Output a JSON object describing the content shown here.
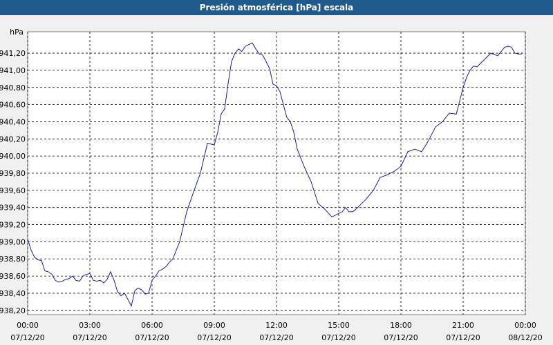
{
  "window": {
    "title": "Presión atmosférica [hPa] escala"
  },
  "colors": {
    "title_bar": "#1f5a8c",
    "line": "#1a1aa8",
    "background": "#f0f0f0",
    "plot_bg": "#ffffff",
    "grid": "#000000"
  },
  "chart_data": {
    "type": "line",
    "title": "Presión atmosférica [hPa] escala",
    "ylabel": "hPa",
    "xlabel": "",
    "grid": true,
    "grid_style": "dashed",
    "ylim": [
      938.15,
      941.45
    ],
    "xlim": [
      0,
      24
    ],
    "x_unit": "hours from 07/12/20 00:00",
    "yticks": [
      {
        "value": 938.2,
        "label": "938,20"
      },
      {
        "value": 938.4,
        "label": "938,40"
      },
      {
        "value": 938.6,
        "label": "938,60"
      },
      {
        "value": 938.8,
        "label": "938,80"
      },
      {
        "value": 939.0,
        "label": "939,00"
      },
      {
        "value": 939.2,
        "label": "939,20"
      },
      {
        "value": 939.4,
        "label": "939,40"
      },
      {
        "value": 939.6,
        "label": "939,60"
      },
      {
        "value": 939.8,
        "label": "939,80"
      },
      {
        "value": 940.0,
        "label": "940,00"
      },
      {
        "value": 940.2,
        "label": "940,20"
      },
      {
        "value": 940.4,
        "label": "940,40"
      },
      {
        "value": 940.6,
        "label": "940,60"
      },
      {
        "value": 940.8,
        "label": "940,80"
      },
      {
        "value": 941.0,
        "label": "941,00"
      },
      {
        "value": 941.2,
        "label": "941,20"
      }
    ],
    "xticks": [
      {
        "value": 0,
        "time": "00:00",
        "date": "07/12/20"
      },
      {
        "value": 3,
        "time": "03:00",
        "date": "07/12/20"
      },
      {
        "value": 6,
        "time": "06:00",
        "date": "07/12/20"
      },
      {
        "value": 9,
        "time": "09:00",
        "date": "07/12/20"
      },
      {
        "value": 12,
        "time": "12:00",
        "date": "07/12/20"
      },
      {
        "value": 15,
        "time": "15:00",
        "date": "07/12/20"
      },
      {
        "value": 18,
        "time": "18:00",
        "date": "07/12/20"
      },
      {
        "value": 21,
        "time": "21:00",
        "date": "07/12/20"
      },
      {
        "value": 24,
        "time": "00:00",
        "date": "08/12/20"
      }
    ],
    "series": [
      {
        "x": [
          0,
          0.17,
          0.33,
          0.5,
          0.67,
          0.83,
          1.0,
          1.17,
          1.33,
          1.5,
          1.67,
          1.83,
          2.0,
          2.17,
          2.33,
          2.5,
          2.67,
          2.83,
          3.0,
          3.17,
          3.33,
          3.5,
          3.67,
          3.83,
          4.0,
          4.17,
          4.33,
          4.5,
          4.67,
          4.83,
          5.0,
          5.17,
          5.33,
          5.5,
          5.67,
          5.83,
          6.0,
          6.17,
          6.33,
          6.5,
          6.67,
          6.83,
          7.0,
          7.33,
          7.67,
          8.0,
          8.33,
          8.67,
          9.0,
          9.17,
          9.33,
          9.5,
          9.67,
          9.83,
          10.0,
          10.17,
          10.33,
          10.5,
          10.67,
          10.83,
          11.0,
          11.17,
          11.33,
          11.5,
          11.67,
          11.83,
          12.0,
          12.17,
          12.33,
          12.5,
          12.67,
          12.83,
          13.0,
          13.33,
          13.67,
          14.0,
          14.33,
          14.67,
          15.0,
          15.17,
          15.33,
          15.5,
          15.67,
          15.83,
          16.0,
          16.33,
          16.67,
          17.0,
          17.33,
          17.67,
          18.0,
          18.33,
          18.67,
          19.0,
          19.33,
          19.67,
          20.0,
          20.33,
          20.67,
          21.0,
          21.17,
          21.33,
          21.5,
          21.67,
          21.83,
          22.0,
          22.33,
          22.67,
          23.0,
          23.17,
          23.33,
          23.5,
          23.67,
          23.83
        ],
        "values": [
          939.03,
          938.9,
          938.82,
          938.79,
          938.78,
          938.66,
          938.65,
          938.62,
          938.55,
          938.53,
          938.54,
          938.56,
          938.57,
          938.6,
          938.55,
          938.54,
          938.6,
          938.62,
          938.63,
          938.55,
          938.54,
          938.55,
          938.52,
          938.56,
          938.65,
          938.55,
          938.42,
          938.37,
          938.4,
          938.33,
          938.25,
          938.43,
          938.46,
          938.44,
          938.39,
          938.4,
          938.55,
          938.6,
          938.66,
          938.68,
          938.71,
          938.76,
          938.8,
          939.0,
          939.35,
          939.58,
          939.8,
          940.15,
          940.13,
          940.28,
          940.49,
          940.55,
          940.85,
          941.1,
          941.2,
          941.25,
          941.22,
          941.28,
          941.3,
          941.32,
          941.25,
          941.19,
          941.18,
          941.1,
          941.02,
          940.84,
          940.82,
          940.75,
          940.6,
          940.45,
          940.4,
          940.28,
          940.08,
          939.88,
          939.7,
          939.45,
          939.38,
          939.29,
          939.33,
          939.35,
          939.4,
          939.35,
          939.35,
          939.38,
          939.42,
          939.5,
          939.6,
          939.75,
          939.78,
          939.82,
          939.88,
          940.05,
          940.08,
          940.05,
          940.18,
          940.34,
          940.4,
          940.5,
          940.49,
          940.8,
          940.92,
          941.0,
          941.05,
          941.04,
          941.08,
          941.12,
          941.2,
          941.17,
          941.27,
          941.28,
          941.27,
          941.2,
          941.19,
          941.19
        ]
      }
    ]
  }
}
